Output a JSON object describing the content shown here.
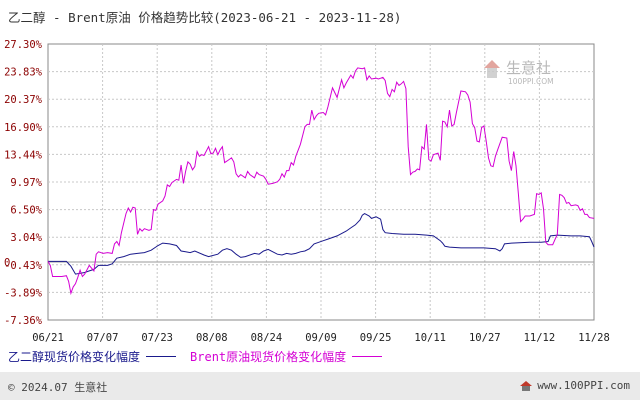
{
  "title": "乙二醇 - Brent原油 价格趋势比较(2023-06-21 - 2023-11-28)",
  "watermark": {
    "name": "生意社",
    "url": "100PPI.COM"
  },
  "footer": {
    "copyright": "© 2024.07 生意社",
    "site": "www.100PPI.com"
  },
  "colors": {
    "series1": "#1a1a8c",
    "series2": "#d400d4",
    "grid": "#c8c8c8",
    "zero": "#888888"
  },
  "chart_data": {
    "type": "line",
    "x_ticks": [
      "06/21",
      "07/07",
      "07/23",
      "08/08",
      "08/24",
      "09/09",
      "09/25",
      "10/11",
      "10/27",
      "11/12",
      "11/28"
    ],
    "y_ticks": [
      "27.30%",
      "23.83%",
      "20.37%",
      "16.90%",
      "13.44%",
      "9.97%",
      "6.50%",
      "3.04%",
      "0",
      "-0.43%",
      "-3.89%",
      "-7.36%"
    ],
    "ylim": [
      -7.36,
      27.3
    ],
    "x_range": [
      "2023-06-21",
      "2023-11-28"
    ],
    "grid": true,
    "legend_position": "bottom-left",
    "series": [
      {
        "name": "乙二醇现货价格变化幅度",
        "points": [
          [
            0,
            0
          ],
          [
            8,
            0
          ],
          [
            10,
            -0.6
          ],
          [
            12,
            -1.6
          ],
          [
            16,
            -1.4
          ],
          [
            18,
            -1.2
          ],
          [
            20,
            -1.0
          ],
          [
            22,
            -0.5
          ],
          [
            26,
            -0.5
          ],
          [
            28,
            -0.3
          ],
          [
            30,
            0.4
          ],
          [
            33,
            0.6
          ],
          [
            36,
            0.9
          ],
          [
            39,
            1.0
          ],
          [
            42,
            1.1
          ],
          [
            45,
            1.4
          ],
          [
            48,
            2.0
          ],
          [
            50,
            2.3
          ],
          [
            53,
            2.2
          ],
          [
            56,
            2.0
          ],
          [
            58,
            1.3
          ],
          [
            60,
            1.2
          ],
          [
            62,
            1.1
          ],
          [
            64,
            1.3
          ],
          [
            68,
            0.8
          ],
          [
            70,
            0.6
          ],
          [
            74,
            0.9
          ],
          [
            76,
            1.4
          ],
          [
            78,
            1.6
          ],
          [
            80,
            1.4
          ],
          [
            82,
            0.9
          ],
          [
            84,
            0.5
          ],
          [
            86,
            0.6
          ],
          [
            90,
            1.0
          ],
          [
            92,
            0.9
          ],
          [
            94,
            1.3
          ],
          [
            96,
            1.5
          ],
          [
            98,
            1.2
          ],
          [
            100,
            0.9
          ],
          [
            102,
            0.8
          ],
          [
            104,
            1.0
          ],
          [
            106,
            0.9
          ],
          [
            108,
            1.0
          ],
          [
            110,
            1.2
          ],
          [
            112,
            1.3
          ],
          [
            114,
            1.6
          ],
          [
            116,
            2.2
          ],
          [
            118,
            2.4
          ],
          [
            120,
            2.6
          ],
          [
            122,
            2.8
          ],
          [
            126,
            3.2
          ],
          [
            130,
            3.8
          ],
          [
            132,
            4.2
          ],
          [
            134,
            4.6
          ],
          [
            136,
            5.2
          ],
          [
            137,
            5.8
          ],
          [
            138,
            6.0
          ],
          [
            140,
            5.7
          ],
          [
            141,
            5.4
          ],
          [
            143,
            5.6
          ],
          [
            145,
            5.3
          ],
          [
            146,
            4.0
          ],
          [
            147,
            3.6
          ],
          [
            150,
            3.5
          ],
          [
            155,
            3.4
          ],
          [
            160,
            3.4
          ],
          [
            165,
            3.3
          ],
          [
            168,
            3.2
          ],
          [
            171,
            2.6
          ],
          [
            172,
            2.3
          ],
          [
            173,
            1.9
          ],
          [
            175,
            1.8
          ],
          [
            180,
            1.7
          ],
          [
            190,
            1.7
          ],
          [
            195,
            1.6
          ],
          [
            197,
            1.3
          ],
          [
            198,
            1.6
          ],
          [
            199,
            2.2
          ],
          [
            202,
            2.3
          ],
          [
            210,
            2.4
          ],
          [
            215,
            2.4
          ],
          [
            218,
            2.5
          ],
          [
            219,
            3.2
          ],
          [
            222,
            3.3
          ],
          [
            228,
            3.2
          ],
          [
            232,
            3.2
          ],
          [
            236,
            3.1
          ],
          [
            237,
            2.5
          ],
          [
            238,
            1.8
          ]
        ]
      },
      {
        "name": "Brent原油现货价格变化幅度",
        "points": [
          [
            0,
            0
          ],
          [
            1,
            -0.5
          ],
          [
            2,
            -1.9
          ],
          [
            4,
            -1.9
          ],
          [
            6,
            -1.9
          ],
          [
            8,
            -1.8
          ],
          [
            9,
            -2.5
          ],
          [
            10,
            -4.0
          ],
          [
            11,
            -3.2
          ],
          [
            12,
            -2.8
          ],
          [
            13,
            -2.0
          ],
          [
            14,
            -1.1
          ],
          [
            15,
            -1.9
          ],
          [
            16,
            -1.6
          ],
          [
            18,
            -0.5
          ],
          [
            20,
            -1.2
          ],
          [
            21,
            0.9
          ],
          [
            22,
            1.2
          ],
          [
            24,
            1.0
          ],
          [
            26,
            1.1
          ],
          [
            28,
            1.0
          ],
          [
            29,
            2.2
          ],
          [
            30,
            2.5
          ],
          [
            31,
            2.0
          ],
          [
            32,
            3.6
          ],
          [
            34,
            6.0
          ],
          [
            35,
            6.7
          ],
          [
            36,
            6.2
          ],
          [
            37,
            6.8
          ],
          [
            38,
            6.7
          ],
          [
            39,
            3.4
          ],
          [
            40,
            4.1
          ],
          [
            41,
            3.8
          ],
          [
            42,
            4.1
          ],
          [
            44,
            3.9
          ],
          [
            45,
            4.0
          ],
          [
            46,
            6.5
          ],
          [
            47,
            6.4
          ],
          [
            48,
            7.2
          ],
          [
            50,
            7.6
          ],
          [
            51,
            8.2
          ],
          [
            52,
            9.6
          ],
          [
            53,
            9.4
          ],
          [
            54,
            9.9
          ],
          [
            56,
            10.3
          ],
          [
            57,
            10.2
          ],
          [
            58,
            12.1
          ],
          [
            59,
            9.8
          ],
          [
            60,
            11.3
          ],
          [
            61,
            12.5
          ],
          [
            62,
            12.2
          ],
          [
            63,
            11.5
          ],
          [
            64,
            11.9
          ],
          [
            65,
            13.8
          ],
          [
            66,
            13.2
          ],
          [
            67,
            13.4
          ],
          [
            68,
            13.3
          ],
          [
            70,
            14.4
          ],
          [
            71,
            13.5
          ],
          [
            72,
            13.6
          ],
          [
            73,
            14.2
          ],
          [
            74,
            13.4
          ],
          [
            75,
            14.0
          ],
          [
            76,
            14.4
          ],
          [
            77,
            12.4
          ],
          [
            78,
            12.6
          ],
          [
            80,
            13.0
          ],
          [
            81,
            12.5
          ],
          [
            82,
            11.0
          ],
          [
            83,
            10.6
          ],
          [
            84,
            10.9
          ],
          [
            86,
            10.5
          ],
          [
            87,
            11.3
          ],
          [
            88,
            10.9
          ],
          [
            90,
            10.5
          ],
          [
            91,
            11.2
          ],
          [
            92,
            10.9
          ],
          [
            94,
            10.7
          ],
          [
            95,
            10.3
          ],
          [
            96,
            9.7
          ],
          [
            98,
            9.8
          ],
          [
            100,
            10.0
          ],
          [
            101,
            10.3
          ],
          [
            102,
            11.0
          ],
          [
            103,
            10.6
          ],
          [
            104,
            11.4
          ],
          [
            105,
            11.4
          ],
          [
            106,
            12.4
          ],
          [
            107,
            12.1
          ],
          [
            108,
            13.2
          ],
          [
            110,
            14.7
          ],
          [
            112,
            16.9
          ],
          [
            113,
            17.2
          ],
          [
            114,
            17.2
          ],
          [
            115,
            19.0
          ],
          [
            116,
            17.8
          ],
          [
            117,
            18.3
          ],
          [
            118,
            18.6
          ],
          [
            120,
            18.7
          ],
          [
            121,
            18.4
          ],
          [
            122,
            19.4
          ],
          [
            124,
            21.8
          ],
          [
            125,
            21.2
          ],
          [
            126,
            20.6
          ],
          [
            128,
            22.8
          ],
          [
            129,
            21.8
          ],
          [
            130,
            22.4
          ],
          [
            132,
            23.4
          ],
          [
            133,
            23.0
          ],
          [
            134,
            23.9
          ],
          [
            135,
            24.3
          ],
          [
            137,
            24.2
          ],
          [
            138,
            24.3
          ],
          [
            139,
            22.8
          ],
          [
            140,
            23.3
          ],
          [
            141,
            22.9
          ],
          [
            143,
            23.0
          ],
          [
            144,
            22.9
          ],
          [
            146,
            23.1
          ],
          [
            147,
            22.7
          ],
          [
            148,
            21.1
          ],
          [
            149,
            20.7
          ],
          [
            150,
            21.6
          ],
          [
            151,
            21.3
          ],
          [
            152,
            22.5
          ],
          [
            153,
            22.1
          ],
          [
            154,
            22.3
          ],
          [
            155,
            22.6
          ],
          [
            156,
            21.7
          ],
          [
            157,
            14.4
          ],
          [
            158,
            10.9
          ],
          [
            159,
            11.2
          ],
          [
            160,
            11.3
          ],
          [
            161,
            11.6
          ],
          [
            162,
            11.5
          ],
          [
            163,
            14.4
          ],
          [
            164,
            14.1
          ],
          [
            165,
            17.2
          ],
          [
            166,
            12.8
          ],
          [
            167,
            12.6
          ],
          [
            168,
            13.4
          ],
          [
            170,
            13.6
          ],
          [
            171,
            12.7
          ],
          [
            172,
            17.6
          ],
          [
            173,
            17.5
          ],
          [
            174,
            16.9
          ],
          [
            175,
            19.0
          ],
          [
            176,
            17.0
          ],
          [
            177,
            17.2
          ],
          [
            178,
            18.7
          ],
          [
            180,
            21.4
          ],
          [
            182,
            21.3
          ],
          [
            183,
            20.9
          ],
          [
            184,
            20.0
          ],
          [
            185,
            17.3
          ],
          [
            186,
            16.8
          ],
          [
            187,
            15.1
          ],
          [
            188,
            15.0
          ],
          [
            189,
            16.8
          ],
          [
            190,
            17.0
          ],
          [
            191,
            15.1
          ],
          [
            192,
            13.0
          ],
          [
            193,
            12.0
          ],
          [
            194,
            11.9
          ],
          [
            195,
            13.2
          ],
          [
            196,
            14.0
          ],
          [
            198,
            15.6
          ],
          [
            200,
            15.5
          ],
          [
            201,
            12.6
          ],
          [
            202,
            11.4
          ],
          [
            203,
            13.8
          ],
          [
            204,
            12.0
          ],
          [
            205,
            8.6
          ],
          [
            206,
            5.0
          ],
          [
            207,
            5.3
          ],
          [
            208,
            5.7
          ],
          [
            210,
            5.7
          ],
          [
            212,
            5.9
          ],
          [
            213,
            8.5
          ],
          [
            214,
            8.4
          ],
          [
            215,
            8.6
          ],
          [
            216,
            6.6
          ],
          [
            217,
            2.4
          ],
          [
            218,
            2.1
          ],
          [
            220,
            2.1
          ],
          [
            222,
            3.4
          ],
          [
            223,
            8.4
          ],
          [
            224,
            8.3
          ],
          [
            225,
            8.0
          ],
          [
            226,
            7.3
          ],
          [
            227,
            7.4
          ],
          [
            228,
            7.0
          ],
          [
            230,
            7.1
          ],
          [
            231,
            7.0
          ],
          [
            232,
            6.4
          ],
          [
            233,
            6.6
          ],
          [
            234,
            5.9
          ],
          [
            235,
            5.9
          ],
          [
            236,
            5.5
          ],
          [
            238,
            5.4
          ]
        ]
      }
    ]
  }
}
